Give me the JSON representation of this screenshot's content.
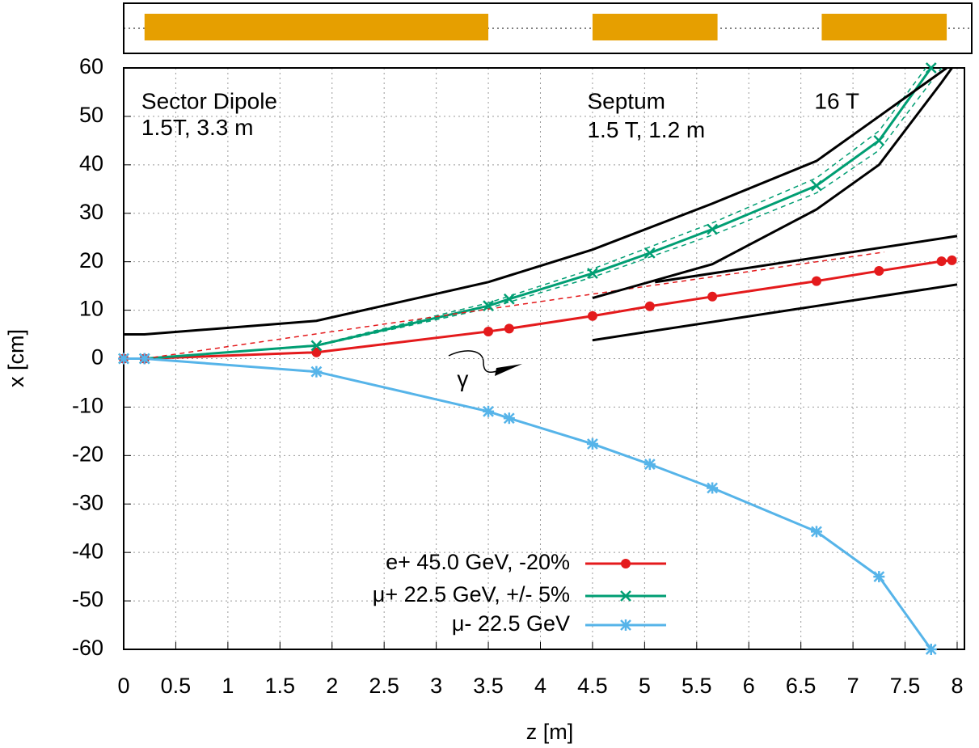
{
  "chart_data": {
    "type": "line",
    "x_label": "z [m]",
    "y_label": "x [cm]",
    "xlim": [
      0,
      8.07
    ],
    "ylim": [
      -60,
      60
    ],
    "xticks": [
      0,
      0.5,
      1,
      1.5,
      2,
      2.5,
      3,
      3.5,
      4,
      4.5,
      5,
      5.5,
      6,
      6.5,
      7,
      7.5,
      8
    ],
    "yticks": [
      60,
      50,
      40,
      30,
      20,
      10,
      0,
      -10,
      -20,
      -30,
      -40,
      -50,
      -60
    ],
    "grid": true,
    "legend": "bottom",
    "magnets": {
      "color": "#e69f00",
      "spans": [
        [
          0.2,
          3.5
        ],
        [
          4.5,
          5.7
        ],
        [
          6.7,
          7.9
        ]
      ]
    },
    "annotations": [
      {
        "text": "Sector Dipole",
        "x": 0.17,
        "y": 52.8
      },
      {
        "text": "1.5T, 3.3 m",
        "x": 0.17,
        "y": 47.4
      },
      {
        "text": "Septum",
        "x": 4.45,
        "y": 52.8
      },
      {
        "text": "1.5 T, 1.2 m",
        "x": 4.45,
        "y": 46.9
      },
      {
        "text": "16 T",
        "x": 6.63,
        "y": 52.8
      },
      {
        "text": "γ",
        "x": 3.2,
        "y": -4.5
      }
    ],
    "series": [
      {
        "name": "e+ 45.0 GeV,   -20%",
        "color": "#e41a1c",
        "marker": "circle",
        "x": [
          0,
          0.2,
          1.85,
          3.5,
          3.7,
          4.5,
          5.05,
          5.65,
          6.65,
          7.25,
          7.85,
          7.95
        ],
        "values": [
          0,
          0,
          1.3,
          5.6,
          6.2,
          8.8,
          10.8,
          12.8,
          16,
          18.1,
          20.1,
          20.3
        ]
      },
      {
        "name": "μ+ 22.5 GeV, +/- 5%",
        "color": "#009e73",
        "marker": "x",
        "x": [
          0,
          0.2,
          1.85,
          3.5,
          3.7,
          4.5,
          5.05,
          5.65,
          6.65,
          7.25,
          7.75
        ],
        "values": [
          0,
          0,
          2.7,
          10.9,
          12.3,
          17.6,
          21.8,
          26.7,
          35.7,
          45,
          60
        ]
      },
      {
        "name": "μ- 22.5 GeV",
        "color": "#56b4e9",
        "marker": "star",
        "x": [
          0,
          0.2,
          1.85,
          3.5,
          3.7,
          4.5,
          5.05,
          5.65,
          6.65,
          7.25,
          7.75
        ],
        "values": [
          0,
          0,
          -2.7,
          -10.9,
          -12.3,
          -17.6,
          -21.8,
          -26.7,
          -35.7,
          -45,
          -60
        ]
      },
      {
        "color": "#009e73",
        "dashed": true,
        "x": [
          0.2,
          1.85,
          3.5,
          4.5,
          5.65,
          6.65,
          7.25,
          7.7
        ],
        "values": [
          0,
          2.8,
          11.5,
          18.5,
          28,
          37.3,
          47,
          60
        ]
      },
      {
        "color": "#009e73",
        "dashed": true,
        "x": [
          0.2,
          1.85,
          3.5,
          4.5,
          5.65,
          6.65,
          7.25,
          7.85
        ],
        "values": [
          0,
          2.6,
          10.4,
          16.8,
          25.5,
          34.2,
          43,
          60
        ]
      },
      {
        "color": "#e41a1c",
        "dashed": true,
        "x": [
          0.2,
          7.3
        ],
        "values": [
          0,
          22
        ]
      },
      {
        "color": "#000000",
        "x": [
          0,
          0.2,
          1.85,
          3.5,
          4.5,
          5.65,
          6.65,
          7.25,
          7.9
        ],
        "values": [
          5,
          5,
          7.8,
          15.8,
          22.5,
          32,
          40.8,
          50,
          60
        ]
      },
      {
        "color": "#000000",
        "x": [
          4.5,
          5.65,
          6.65,
          7.25,
          7.85,
          7.95
        ],
        "values": [
          12.5,
          19.5,
          30.8,
          40,
          57,
          60
        ]
      },
      {
        "color": "#000000",
        "x": [
          5.1,
          8
        ],
        "values": [
          15.8,
          25.3
        ]
      },
      {
        "color": "#000000",
        "x": [
          4.5,
          8
        ],
        "values": [
          3.8,
          15.3
        ]
      }
    ]
  }
}
